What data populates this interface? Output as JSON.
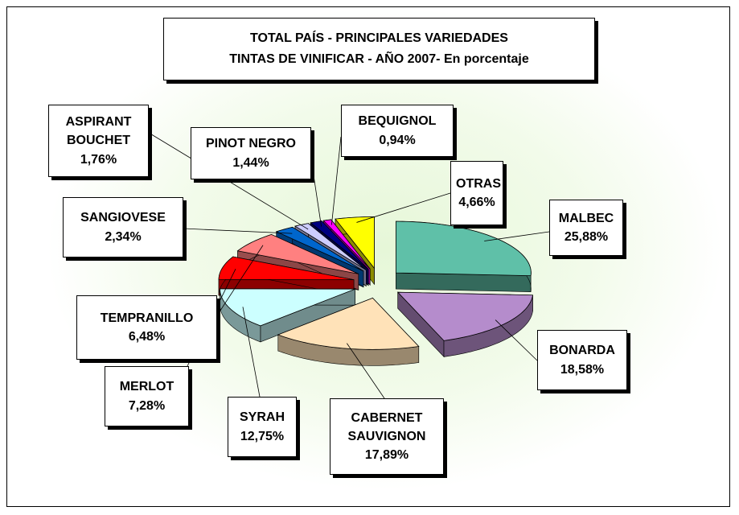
{
  "chart_data": {
    "type": "pie",
    "title": "TOTAL PAÍS - PRINCIPALES VARIEDADES",
    "subtitle": "TINTAS  DE VINIFICAR - AÑO 2007-  En porcentaje",
    "categories": [
      "MALBEC",
      "BONARDA",
      "CABERNET SAUVIGNON",
      "SYRAH",
      "MERLOT",
      "TEMPRANILLO",
      "SANGIOVESE",
      "ASPIRANT BOUCHET",
      "PINOT NEGRO",
      "BEQUIGNOL",
      "OTRAS"
    ],
    "values": [
      25.88,
      18.58,
      17.89,
      12.75,
      7.28,
      6.48,
      2.34,
      1.76,
      1.44,
      0.94,
      4.66
    ],
    "value_labels": [
      "25,88%",
      "18,58%",
      "17,89%",
      "12,75%",
      "7,28%",
      "6,48%",
      "2,34%",
      "1,76%",
      "1,44%",
      "0,94%",
      "4,66%"
    ],
    "colors": [
      "#5fc0a8",
      "#b58ccc",
      "#ffe2b8",
      "#ccffff",
      "#ff0000",
      "#ff8080",
      "#0066cc",
      "#ccccff",
      "#000080",
      "#ff00ff",
      "#ffff00"
    ]
  }
}
